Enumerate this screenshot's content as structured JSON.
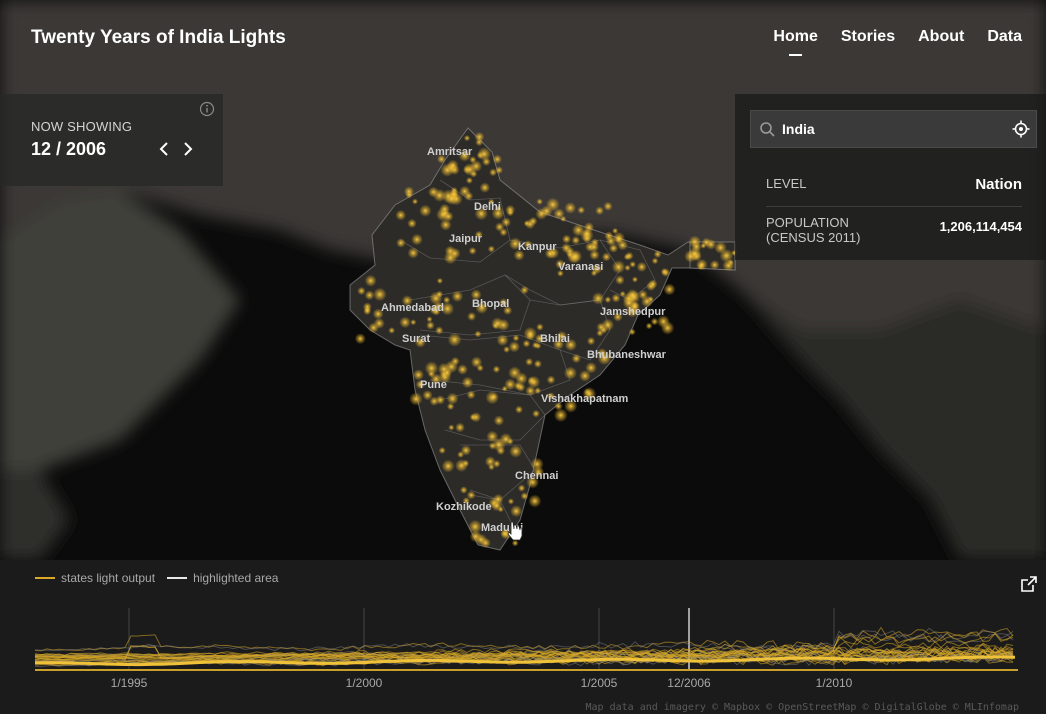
{
  "header": {
    "title": "Twenty Years of India Lights",
    "nav": [
      {
        "label": "Home",
        "active": true
      },
      {
        "label": "Stories",
        "active": false
      },
      {
        "label": "About",
        "active": false
      },
      {
        "label": "Data",
        "active": false
      }
    ]
  },
  "now_showing": {
    "label": "NOW SHOWING",
    "date": "12 / 2006",
    "prev_icon": "chevron-left-icon",
    "next_icon": "chevron-right-icon",
    "info_icon": "info-icon"
  },
  "search": {
    "value": "India",
    "icon": "search-icon",
    "locate_icon": "crosshair-icon"
  },
  "stats": {
    "level_label": "LEVEL",
    "level_value": "Nation",
    "population_label_1": "POPULATION",
    "population_label_2": "(CENSUS 2011)",
    "population_value": "1,206,114,454"
  },
  "map": {
    "cities": [
      {
        "name": "Amritsar"
      },
      {
        "name": "Delhi"
      },
      {
        "name": "Jaipur"
      },
      {
        "name": "Kanpur"
      },
      {
        "name": "Varanasi"
      },
      {
        "name": "Ahmedabad"
      },
      {
        "name": "Bhopal"
      },
      {
        "name": "Jamshedpur"
      },
      {
        "name": "Surat"
      },
      {
        "name": "Bhilai"
      },
      {
        "name": "Bhubaneshwar"
      },
      {
        "name": "Pune"
      },
      {
        "name": "Vishakhapatnam"
      },
      {
        "name": "Chennai"
      },
      {
        "name": "Kozhikode"
      },
      {
        "name": "Madurai"
      }
    ],
    "light_color": "#e6b530"
  },
  "timeline": {
    "legend": [
      {
        "label": "states light output",
        "color": "#d9a927"
      },
      {
        "label": "highlighted area",
        "color": "#e8e8e8"
      }
    ],
    "ticks": [
      "1/1995",
      "1/2000",
      "1/2005",
      "12/2006",
      "1/2010"
    ],
    "current": "12/2006",
    "external_icon": "external-link-icon"
  },
  "attribution": "Map data and imagery © Mapbox © OpenStreetMap © DigitalGlobe © MLInfomap"
}
